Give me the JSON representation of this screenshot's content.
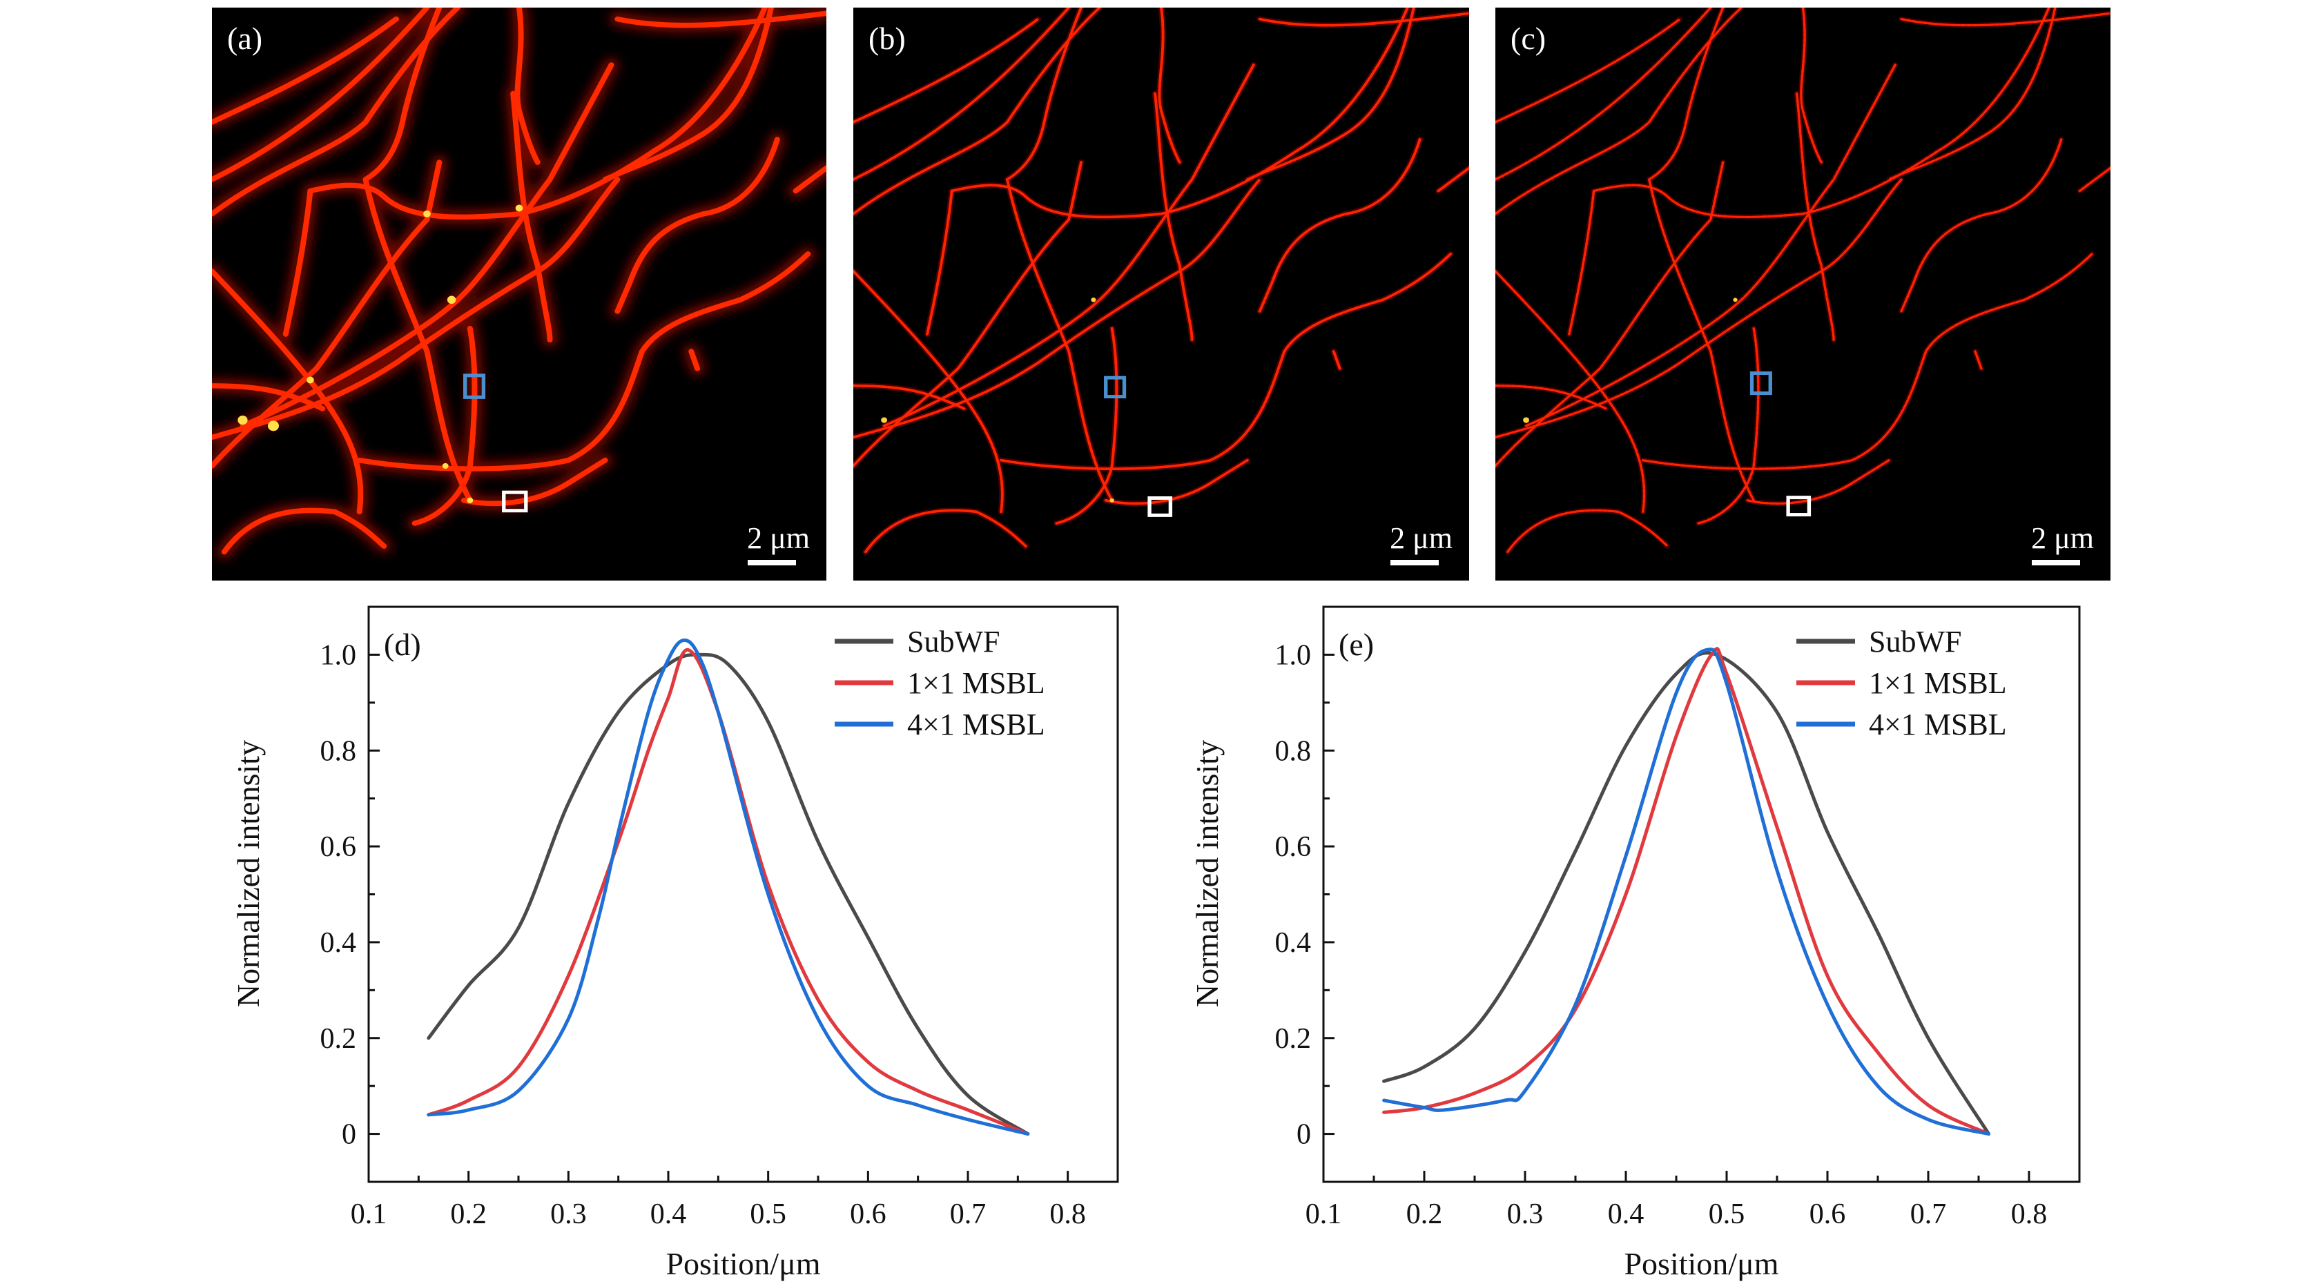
{
  "panels": [
    {
      "label": "(a)",
      "scale_bar": "2 μm"
    },
    {
      "label": "(b)",
      "scale_bar": "2 μm"
    },
    {
      "label": "(c)",
      "scale_bar": "2 μm"
    }
  ],
  "colors": {
    "subwf": "#4a4a4a",
    "msbl1x1": "#e0393e",
    "msbl4x1": "#1f6fd6",
    "roi_blue": "#4a90d0",
    "roi_white": "#ffffff"
  },
  "chart_data": [
    {
      "type": "line",
      "panel_label": "(d)",
      "xlabel": "Position/μm",
      "ylabel": "Normalized intensity",
      "xlim": [
        0.1,
        0.85
      ],
      "ylim": [
        -0.1,
        1.1
      ],
      "xticks": [
        "0.1",
        "0.2",
        "0.3",
        "0.4",
        "0.5",
        "0.6",
        "0.7",
        "0.8"
      ],
      "yticks": [
        "0",
        "0.2",
        "0.4",
        "0.6",
        "0.8",
        "1.0"
      ],
      "legend_position": "top-right",
      "series": [
        {
          "name": "SubWF",
          "color": "#4a4a4a",
          "x": [
            0.16,
            0.2,
            0.25,
            0.3,
            0.35,
            0.4,
            0.43,
            0.46,
            0.5,
            0.55,
            0.6,
            0.65,
            0.7,
            0.76
          ],
          "y": [
            0.2,
            0.31,
            0.43,
            0.69,
            0.88,
            0.98,
            1.0,
            0.98,
            0.86,
            0.61,
            0.41,
            0.22,
            0.08,
            0.0
          ]
        },
        {
          "name": "1×1 MSBL",
          "color": "#e0393e",
          "x": [
            0.16,
            0.2,
            0.25,
            0.3,
            0.35,
            0.38,
            0.4,
            0.42,
            0.45,
            0.5,
            0.55,
            0.6,
            0.65,
            0.7,
            0.76
          ],
          "y": [
            0.04,
            0.07,
            0.14,
            0.33,
            0.61,
            0.8,
            0.91,
            1.01,
            0.88,
            0.52,
            0.28,
            0.15,
            0.09,
            0.05,
            0.0
          ]
        },
        {
          "name": "4×1 MSBL",
          "color": "#1f6fd6",
          "x": [
            0.16,
            0.2,
            0.25,
            0.3,
            0.33,
            0.35,
            0.38,
            0.4,
            0.415,
            0.43,
            0.45,
            0.5,
            0.55,
            0.6,
            0.65,
            0.7,
            0.76
          ],
          "y": [
            0.04,
            0.05,
            0.09,
            0.24,
            0.45,
            0.63,
            0.88,
            0.99,
            1.03,
            1.0,
            0.88,
            0.5,
            0.24,
            0.1,
            0.06,
            0.03,
            0.0
          ]
        }
      ]
    },
    {
      "type": "line",
      "panel_label": "(e)",
      "xlabel": "Position/μm",
      "ylabel": "Normalized intensity",
      "xlim": [
        0.1,
        0.85
      ],
      "ylim": [
        -0.1,
        1.1
      ],
      "xticks": [
        "0.1",
        "0.2",
        "0.3",
        "0.4",
        "0.5",
        "0.6",
        "0.7",
        "0.8"
      ],
      "yticks": [
        "0",
        "0.2",
        "0.4",
        "0.6",
        "0.8",
        "1.0"
      ],
      "legend_position": "top-right",
      "series": [
        {
          "name": "SubWF",
          "color": "#4a4a4a",
          "x": [
            0.16,
            0.2,
            0.25,
            0.3,
            0.35,
            0.4,
            0.45,
            0.49,
            0.55,
            0.6,
            0.65,
            0.7,
            0.76
          ],
          "y": [
            0.11,
            0.14,
            0.22,
            0.38,
            0.59,
            0.81,
            0.96,
            1.0,
            0.88,
            0.63,
            0.42,
            0.2,
            0.0
          ]
        },
        {
          "name": "1×1 MSBL",
          "color": "#e0393e",
          "x": [
            0.16,
            0.2,
            0.25,
            0.3,
            0.35,
            0.4,
            0.45,
            0.485,
            0.5,
            0.55,
            0.6,
            0.65,
            0.7,
            0.76
          ],
          "y": [
            0.045,
            0.055,
            0.085,
            0.14,
            0.26,
            0.5,
            0.83,
            1.0,
            0.96,
            0.64,
            0.33,
            0.17,
            0.06,
            0.0
          ]
        },
        {
          "name": "4×1 MSBL",
          "color": "#1f6fd6",
          "x": [
            0.16,
            0.2,
            0.22,
            0.28,
            0.3,
            0.35,
            0.4,
            0.45,
            0.48,
            0.5,
            0.55,
            0.6,
            0.65,
            0.7,
            0.76
          ],
          "y": [
            0.07,
            0.055,
            0.05,
            0.07,
            0.09,
            0.27,
            0.58,
            0.92,
            1.01,
            0.94,
            0.55,
            0.27,
            0.1,
            0.03,
            0.0
          ]
        }
      ]
    }
  ]
}
